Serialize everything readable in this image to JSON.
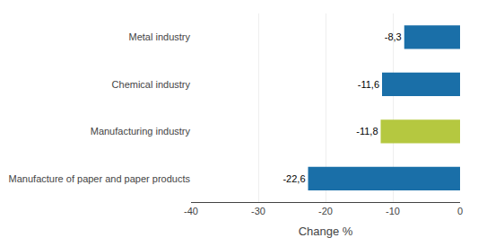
{
  "chart_data": {
    "type": "bar",
    "orientation": "horizontal",
    "categories": [
      "Manufacture of paper and paper products",
      "Manufacturing industry",
      "Chemical industry",
      "Metal industry"
    ],
    "values": [
      -22.6,
      -11.8,
      -11.6,
      -8.3
    ],
    "value_labels": [
      "-22,6",
      "-11,8",
      "-11,6",
      "-8,3"
    ],
    "data_labels": true,
    "colors": [
      "#1a6fa8",
      "#b5c840",
      "#1a6fa8",
      "#1a6fa8"
    ],
    "xlabel": "Change %",
    "xlim": [
      -40,
      0
    ],
    "xticks": [
      -40,
      -30,
      -20,
      -10,
      0
    ],
    "grid": true
  }
}
